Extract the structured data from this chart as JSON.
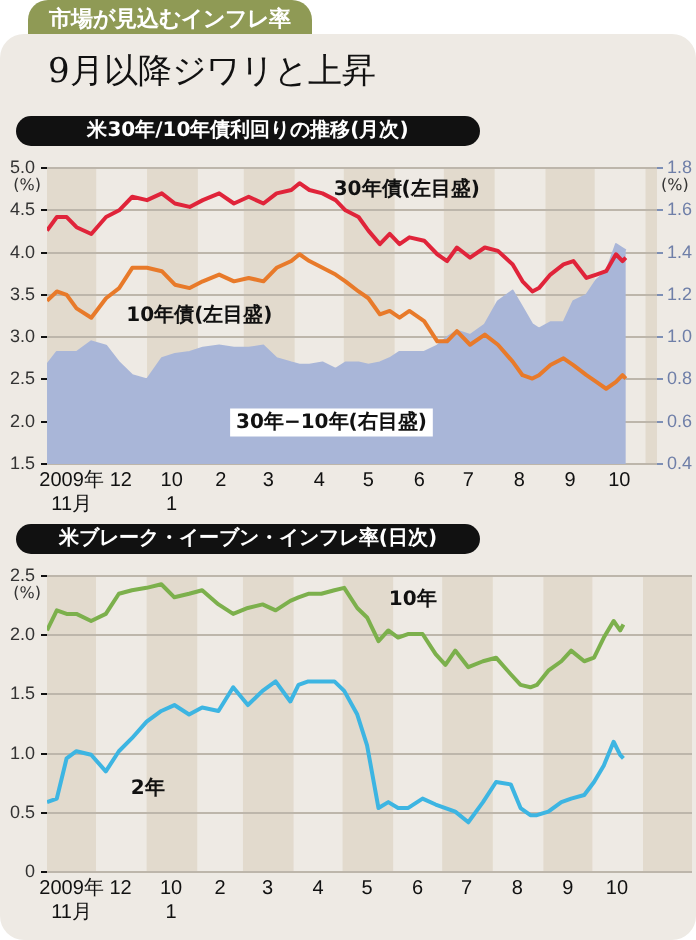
{
  "chart_data": [
    {
      "type": "line",
      "title": "米30年/10年債利回りの推移(月次)",
      "annotations": [
        "市場が見込むインフレ率",
        "9月以降ジワリと上昇"
      ],
      "x": [
        "2009-11-01",
        "2009-11-07",
        "2009-11-13",
        "2009-11-19",
        "2009-11-28",
        "2009-12-07",
        "2009-12-15",
        "2009-12-23",
        "2010-01-01",
        "2010-01-10",
        "2010-01-18",
        "2010-01-27",
        "2010-02-04",
        "2010-02-14",
        "2010-02-23",
        "2010-03-04",
        "2010-03-13",
        "2010-03-21",
        "2010-03-30",
        "2010-04-04",
        "2010-04-10",
        "2010-04-18",
        "2010-04-26",
        "2010-05-02",
        "2010-05-10",
        "2010-05-16",
        "2010-05-23",
        "2010-05-29",
        "2010-06-04",
        "2010-06-10",
        "2010-06-19",
        "2010-06-27",
        "2010-07-03",
        "2010-07-09",
        "2010-07-17",
        "2010-07-26",
        "2010-08-03",
        "2010-08-12",
        "2010-08-18",
        "2010-08-24",
        "2010-08-28",
        "2010-09-04",
        "2010-09-12",
        "2010-09-18",
        "2010-09-26",
        "2010-10-02",
        "2010-10-08",
        "2010-10-14",
        "2010-10-18",
        "2010-10-20"
      ],
      "series": [
        {
          "name": "30年−10年(右目盛)",
          "type": "area",
          "axis": "y2",
          "color": "#a9b6d8",
          "values": [
            0.87,
            0.93,
            0.93,
            0.93,
            0.98,
            0.96,
            0.88,
            0.82,
            0.8,
            0.9,
            0.92,
            0.93,
            0.95,
            0.96,
            0.95,
            0.95,
            0.96,
            0.9,
            0.88,
            0.87,
            0.87,
            0.88,
            0.85,
            0.88,
            0.88,
            0.87,
            0.88,
            0.9,
            0.93,
            0.93,
            0.93,
            0.96,
            1.0,
            1.03,
            1.01,
            1.06,
            1.17,
            1.22,
            1.14,
            1.06,
            1.04,
            1.07,
            1.07,
            1.17,
            1.2,
            1.27,
            1.31,
            1.44,
            1.42,
            1.41
          ]
        },
        {
          "name": "30年債(左目盛)",
          "color": "#e0243a",
          "values": [
            4.26,
            4.42,
            4.42,
            4.3,
            4.22,
            4.42,
            4.5,
            4.66,
            4.62,
            4.7,
            4.58,
            4.54,
            4.62,
            4.7,
            4.58,
            4.66,
            4.58,
            4.7,
            4.74,
            4.82,
            4.74,
            4.7,
            4.62,
            4.5,
            4.42,
            4.26,
            4.1,
            4.22,
            4.1,
            4.18,
            4.14,
            3.98,
            3.9,
            4.06,
            3.94,
            4.06,
            4.02,
            3.86,
            3.66,
            3.54,
            3.58,
            3.74,
            3.86,
            3.9,
            3.7,
            3.74,
            3.78,
            3.98,
            3.9,
            3.94
          ]
        },
        {
          "name": "10年債(左目盛)",
          "color": "#e87a2a",
          "values": [
            3.43,
            3.54,
            3.5,
            3.34,
            3.23,
            3.46,
            3.58,
            3.82,
            3.82,
            3.78,
            3.62,
            3.58,
            3.66,
            3.74,
            3.66,
            3.7,
            3.66,
            3.82,
            3.9,
            3.98,
            3.9,
            3.82,
            3.74,
            3.66,
            3.54,
            3.46,
            3.27,
            3.31,
            3.23,
            3.31,
            3.19,
            2.95,
            2.95,
            3.07,
            2.91,
            3.03,
            2.91,
            2.71,
            2.55,
            2.51,
            2.55,
            2.67,
            2.75,
            2.67,
            2.55,
            2.47,
            2.39,
            2.47,
            2.55,
            2.51
          ]
        }
      ],
      "xlim": [
        "2009-11-01",
        "2010-11-08"
      ],
      "xticks": [
        {
          "value": "2009-11-16",
          "label": "2009年\n11月"
        },
        {
          "value": "2009-12-16",
          "label": "12"
        },
        {
          "value": "2010-01-16",
          "label": "10\n1"
        },
        {
          "value": "2010-02-15",
          "label": "2"
        },
        {
          "value": "2010-03-16",
          "label": "3"
        },
        {
          "value": "2010-04-16",
          "label": "4"
        },
        {
          "value": "2010-05-16",
          "label": "5"
        },
        {
          "value": "2010-06-16",
          "label": "6"
        },
        {
          "value": "2010-07-16",
          "label": "7"
        },
        {
          "value": "2010-08-16",
          "label": "8"
        },
        {
          "value": "2010-09-16",
          "label": "9"
        },
        {
          "value": "2010-10-16",
          "label": "10"
        }
      ],
      "ylim": [
        1.5,
        5.0
      ],
      "yticks": [
        1.5,
        {
          "value": 2,
          "label": "2.0"
        },
        2.5,
        {
          "value": 3,
          "label": "3.0"
        },
        3.5,
        {
          "value": 4,
          "label": "4.0"
        },
        4.5,
        {
          "value": 5,
          "label": "5.0"
        }
      ],
      "y2lim": [
        0.4,
        1.8
      ],
      "y2ticks": [
        0.4,
        0.6,
        0.8,
        {
          "value": 1,
          "label": "1.0"
        },
        1.2,
        1.4,
        1.6,
        1.8
      ],
      "ylabel": "(%)",
      "y2label": "(%)",
      "grid": "y",
      "bands": [
        {
          "axis": "x",
          "from": "2009-11-01",
          "to": "2009-12-01",
          "color": "#e2dacd"
        },
        {
          "axis": "x",
          "from": "2010-01-01",
          "to": "2010-02-01",
          "color": "#e2dacd"
        },
        {
          "axis": "x",
          "from": "2010-03-01",
          "to": "2010-04-01",
          "color": "#e2dacd"
        },
        {
          "axis": "x",
          "from": "2010-05-01",
          "to": "2010-06-01",
          "color": "#e2dacd"
        },
        {
          "axis": "x",
          "from": "2010-07-01",
          "to": "2010-08-01",
          "color": "#e2dacd"
        },
        {
          "axis": "x",
          "from": "2010-09-01",
          "to": "2010-10-01",
          "color": "#e2dacd"
        },
        {
          "axis": "x",
          "from": "2010-11-01",
          "to": "2010-11-08",
          "color": "#e2dacd"
        }
      ]
    },
    {
      "type": "line",
      "title": "米ブレーク・イーブン・インフレ率(日次)",
      "x": [
        "2009-11-01",
        "2009-11-07",
        "2009-11-13",
        "2009-11-19",
        "2009-11-28",
        "2009-12-07",
        "2009-12-15",
        "2009-12-23",
        "2010-01-01",
        "2010-01-10",
        "2010-01-18",
        "2010-01-27",
        "2010-02-04",
        "2010-02-14",
        "2010-02-23",
        "2010-03-04",
        "2010-03-13",
        "2010-03-21",
        "2010-03-30",
        "2010-04-04",
        "2010-04-10",
        "2010-04-18",
        "2010-04-26",
        "2010-05-02",
        "2010-05-10",
        "2010-05-16",
        "2010-05-23",
        "2010-05-29",
        "2010-06-04",
        "2010-06-10",
        "2010-06-19",
        "2010-06-27",
        "2010-07-03",
        "2010-07-09",
        "2010-07-17",
        "2010-07-26",
        "2010-08-03",
        "2010-08-12",
        "2010-08-18",
        "2010-08-24",
        "2010-08-28",
        "2010-09-04",
        "2010-09-12",
        "2010-09-18",
        "2010-09-26",
        "2010-10-02",
        "2010-10-08",
        "2010-10-14",
        "2010-10-18",
        "2010-10-20"
      ],
      "series": [
        {
          "name": "10年",
          "color": "#7cb04c",
          "values": [
            2.04,
            2.21,
            2.18,
            2.18,
            2.12,
            2.18,
            2.35,
            2.38,
            2.4,
            2.43,
            2.32,
            2.35,
            2.38,
            2.26,
            2.18,
            2.23,
            2.26,
            2.21,
            2.29,
            2.32,
            2.35,
            2.35,
            2.38,
            2.4,
            2.23,
            2.15,
            1.95,
            2.04,
            1.98,
            2.01,
            2.01,
            1.84,
            1.75,
            1.87,
            1.73,
            1.78,
            1.81,
            1.67,
            1.58,
            1.56,
            1.58,
            1.7,
            1.78,
            1.87,
            1.78,
            1.81,
            1.98,
            2.12,
            2.04,
            2.09
          ]
        },
        {
          "name": "2年",
          "color": "#3db5e2",
          "values": [
            0.59,
            0.62,
            0.96,
            1.02,
            0.99,
            0.85,
            1.02,
            1.13,
            1.27,
            1.36,
            1.41,
            1.33,
            1.39,
            1.36,
            1.56,
            1.41,
            1.53,
            1.61,
            1.44,
            1.58,
            1.61,
            1.61,
            1.61,
            1.53,
            1.33,
            1.07,
            0.54,
            0.59,
            0.54,
            0.54,
            0.62,
            0.57,
            0.54,
            0.51,
            0.42,
            0.59,
            0.76,
            0.74,
            0.54,
            0.48,
            0.48,
            0.51,
            0.59,
            0.62,
            0.65,
            0.76,
            0.9,
            1.1,
            0.99,
            0.96
          ]
        }
      ],
      "xlim": [
        "2009-11-01",
        "2010-12-01"
      ],
      "xticks": [
        {
          "value": "2009-11-16",
          "label": "2009年\n11月"
        },
        {
          "value": "2009-12-16",
          "label": "12"
        },
        {
          "value": "2010-01-16",
          "label": "10\n1"
        },
        {
          "value": "2010-02-15",
          "label": "2"
        },
        {
          "value": "2010-03-16",
          "label": "3"
        },
        {
          "value": "2010-04-16",
          "label": "4"
        },
        {
          "value": "2010-05-16",
          "label": "5"
        },
        {
          "value": "2010-06-16",
          "label": "6"
        },
        {
          "value": "2010-07-16",
          "label": "7"
        },
        {
          "value": "2010-08-16",
          "label": "8"
        },
        {
          "value": "2010-09-16",
          "label": "9"
        },
        {
          "value": "2010-10-16",
          "label": "10"
        }
      ],
      "ylim": [
        0,
        2.5
      ],
      "yticks": [
        0,
        0.5,
        {
          "value": 1,
          "label": "1.0"
        },
        1.5,
        {
          "value": 2,
          "label": "2.0"
        },
        2.5
      ],
      "ylabel": "(%)",
      "grid": "y",
      "bands": [
        {
          "axis": "x",
          "from": "2009-11-01",
          "to": "2009-12-01",
          "color": "#e2dacd"
        },
        {
          "axis": "x",
          "from": "2010-01-01",
          "to": "2010-02-01",
          "color": "#e2dacd"
        },
        {
          "axis": "x",
          "from": "2010-03-01",
          "to": "2010-04-01",
          "color": "#e2dacd"
        },
        {
          "axis": "x",
          "from": "2010-05-01",
          "to": "2010-06-01",
          "color": "#e2dacd"
        },
        {
          "axis": "x",
          "from": "2010-07-01",
          "to": "2010-08-01",
          "color": "#e2dacd"
        },
        {
          "axis": "x",
          "from": "2010-09-01",
          "to": "2010-10-01",
          "color": "#e2dacd"
        },
        {
          "axis": "x",
          "from": "2010-11-01",
          "to": "2010-12-01",
          "color": "#e2dacd"
        }
      ]
    }
  ]
}
